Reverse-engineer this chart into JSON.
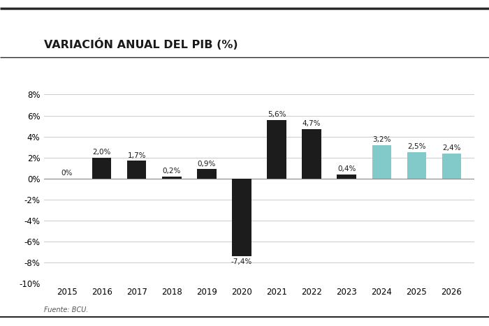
{
  "title": "VARIACIÓN ANUAL DEL PIB (%)",
  "categories": [
    "2015",
    "2016",
    "2017",
    "2018",
    "2019",
    "2020",
    "2021",
    "2022",
    "2023",
    "2024",
    "2025",
    "2026"
  ],
  "values": [
    0.0,
    2.0,
    1.7,
    0.2,
    0.9,
    -7.4,
    5.6,
    4.7,
    0.4,
    3.2,
    2.5,
    2.4
  ],
  "labels": [
    "0%",
    "2,0%",
    "1,7%",
    "0,2%",
    "0,9%",
    "-7,4%",
    "5,6%",
    "4,7%",
    "0,4%",
    "3,2%",
    "2,5%",
    "2,4%"
  ],
  "dark_indices": [
    0,
    1,
    2,
    3,
    4,
    5,
    6,
    7,
    8
  ],
  "light_indices": [
    9,
    10,
    11
  ],
  "bar_color_dark": "#1c1c1c",
  "bar_color_light": "#82cac9",
  "ylim": [
    -10,
    8
  ],
  "yticks": [
    -10,
    -8,
    -6,
    -4,
    -2,
    0,
    2,
    4,
    6,
    8
  ],
  "ytick_labels": [
    "-10%",
    "-8%",
    "-6%",
    "-4%",
    "-2%",
    "0%",
    "2%",
    "4%",
    "6%",
    "8%"
  ],
  "source": "Fuente: BCU.",
  "title_fontsize": 11.5,
  "label_fontsize": 7.5,
  "tick_fontsize": 8.5,
  "source_fontsize": 7,
  "background_color": "#ffffff",
  "bar_width": 0.55,
  "grid_color": "#cccccc",
  "line_color": "#2a2a2a"
}
